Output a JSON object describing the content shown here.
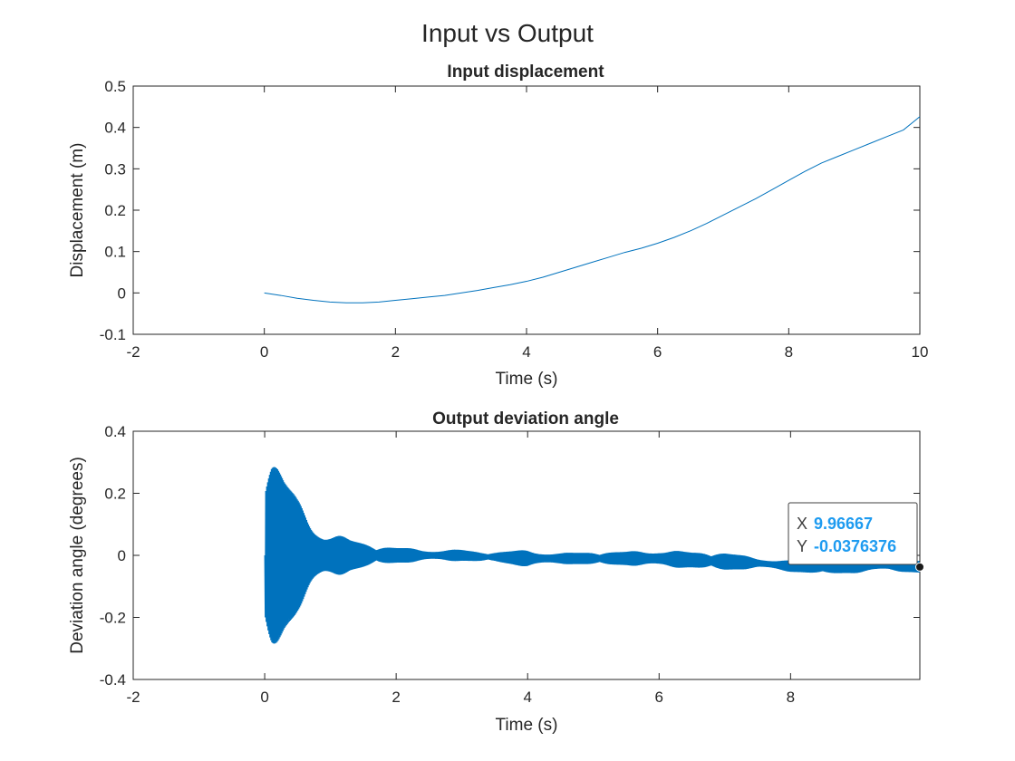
{
  "figure": {
    "title": "Input vs Output"
  },
  "chart_data": [
    {
      "type": "line",
      "title": "Input displacement",
      "xlabel": "Time (s)",
      "ylabel": "Displacement (m)",
      "xlim": [
        -2,
        10
      ],
      "ylim": [
        -0.1,
        0.5
      ],
      "xticks": [
        -2,
        0,
        2,
        4,
        6,
        8,
        10
      ],
      "xtick_labels": [
        "-2",
        "0",
        "2",
        "4",
        "6",
        "8",
        "10"
      ],
      "yticks": [
        -0.1,
        0,
        0.1,
        0.2,
        0.3,
        0.4,
        0.5
      ],
      "ytick_labels": [
        "-0.1",
        "0",
        "0.1",
        "0.2",
        "0.3",
        "0.4",
        "0.5"
      ],
      "grid": false,
      "line_color": "#0072bd",
      "series": [
        {
          "x": [
            0,
            0.25,
            0.5,
            0.75,
            1.0,
            1.25,
            1.5,
            1.75,
            2.0,
            2.25,
            2.5,
            2.75,
            3.0,
            3.25,
            3.5,
            3.75,
            4.0,
            4.25,
            4.5,
            4.75,
            5.0,
            5.25,
            5.5,
            5.75,
            6.0,
            6.25,
            6.5,
            6.75,
            7.0,
            7.25,
            7.5,
            7.75,
            8.0,
            8.25,
            8.5,
            8.75,
            9.0,
            9.25,
            9.5,
            9.75,
            10.0
          ],
          "y": [
            0.0,
            -0.006,
            -0.013,
            -0.018,
            -0.022,
            -0.024,
            -0.024,
            -0.022,
            -0.018,
            -0.014,
            -0.01,
            -0.006,
            0.0,
            0.006,
            0.013,
            0.02,
            0.028,
            0.038,
            0.05,
            0.062,
            0.074,
            0.086,
            0.098,
            0.108,
            0.12,
            0.134,
            0.15,
            0.168,
            0.188,
            0.208,
            0.228,
            0.25,
            0.272,
            0.294,
            0.314,
            0.33,
            0.346,
            0.362,
            0.378,
            0.394,
            0.426
          ]
        }
      ]
    },
    {
      "type": "line",
      "title": "Output deviation angle",
      "xlabel": "Time (s)",
      "ylabel": "Deviation angle (degrees)",
      "xlim": [
        -2,
        9.96667
      ],
      "ylim": [
        -0.4,
        0.4
      ],
      "xticks": [
        -2,
        0,
        2,
        4,
        6,
        8
      ],
      "xtick_labels": [
        "-2",
        "0",
        "2",
        "4",
        "6",
        "8"
      ],
      "yticks": [
        -0.4,
        -0.2,
        0,
        0.2,
        0.4
      ],
      "ytick_labels": [
        "-0.4",
        "-0.2",
        "0",
        "0.2",
        "0.4"
      ],
      "grid": false,
      "line_color": "#0072bd",
      "envelope": {
        "t": [
          0,
          0.1,
          0.2,
          0.3,
          0.5,
          0.7,
          0.9,
          1.1,
          1.3,
          1.5,
          1.7,
          2.0,
          2.5,
          3.0,
          3.3,
          3.5,
          4.0,
          4.5,
          5.0,
          5.5,
          6.0,
          6.5,
          7.0,
          7.5,
          8.0,
          8.5,
          9.0,
          9.5,
          9.96667
        ],
        "offset": [
          0.0,
          0.0,
          0.0,
          0.0,
          0.0,
          0.0,
          0.0,
          0.0,
          0.0,
          0.0,
          0.0,
          0.0,
          0.0,
          0.0,
          -0.005,
          -0.005,
          -0.01,
          -0.01,
          -0.01,
          -0.01,
          -0.01,
          -0.015,
          -0.02,
          -0.025,
          -0.035,
          -0.04,
          -0.035,
          -0.03,
          -0.037
        ],
        "amplitude": [
          0.35,
          0.34,
          0.3,
          0.25,
          0.18,
          0.13,
          0.09,
          0.07,
          0.05,
          0.04,
          0.03,
          0.025,
          0.02,
          0.018,
          0.015,
          0.015,
          0.028,
          0.018,
          0.02,
          0.022,
          0.03,
          0.025,
          0.028,
          0.018,
          0.018,
          0.02,
          0.022,
          0.02,
          0.02
        ]
      },
      "datatip": {
        "x_key": "X",
        "x_value": "9.96667",
        "y_key": "Y",
        "y_value": "-0.0376376",
        "x": 9.96667,
        "y": -0.0376376
      }
    }
  ]
}
